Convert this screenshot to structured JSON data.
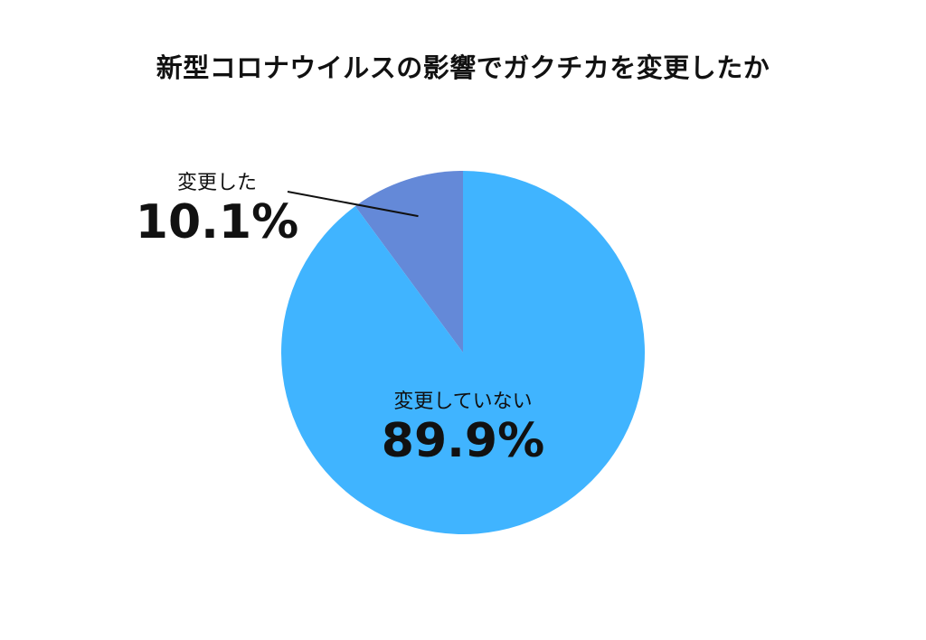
{
  "chart_data": {
    "type": "pie",
    "title": "新型コロナウイルスの影響でガクチカを変更したか",
    "slices": [
      {
        "label": "変更した",
        "value": 10.1,
        "value_label": "10.1%",
        "color": "#6489d8"
      },
      {
        "label": "変更していない",
        "value": 89.9,
        "value_label": "89.9%",
        "color": "#40b4ff"
      }
    ],
    "start_angle_deg": 0,
    "direction": "counterclockwise-from-top",
    "legend": "none"
  }
}
